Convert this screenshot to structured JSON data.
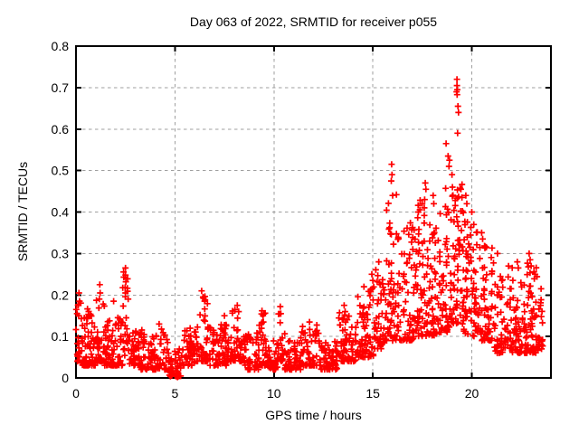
{
  "chart_data": {
    "type": "scatter",
    "title": "Day 063 of 2022, SRMTID for receiver p055",
    "xlabel": "GPS time / hours",
    "ylabel": "SRMTID / TECUs",
    "xlim": [
      0,
      24
    ],
    "ylim": [
      0,
      0.8
    ],
    "xticks": [
      0,
      5,
      10,
      15,
      20
    ],
    "xtick_labels": [
      "0",
      "5",
      "10",
      "15",
      "20"
    ],
    "yticks": [
      0,
      0.1,
      0.2,
      0.3,
      0.4,
      0.5,
      0.6,
      0.7,
      0.8
    ],
    "ytick_labels": [
      "0",
      "0.1",
      "0.2",
      "0.3",
      "0.4",
      "0.5",
      "0.6",
      "0.7",
      "0.8"
    ],
    "grid": true,
    "legend": "none",
    "marker": "plus",
    "marker_color": "#ff0000",
    "grid_color": "#9f9f9f",
    "axis_color": "#000000",
    "background_color": "#ffffff",
    "series_name": "SRMTID",
    "bins_format": [
      "t_start_hours",
      "t_end_hours",
      "count",
      "y_min_TECU",
      "y_max_TECU",
      "concentration_exponent"
    ],
    "density_bins": [
      [
        0.0,
        0.25,
        20,
        0.04,
        0.19,
        2.0
      ],
      [
        0.25,
        1.0,
        75,
        0.03,
        0.17,
        2.2
      ],
      [
        1.0,
        1.45,
        40,
        0.04,
        0.22,
        2.0
      ],
      [
        1.45,
        2.35,
        70,
        0.03,
        0.16,
        2.2
      ],
      [
        2.35,
        2.65,
        22,
        0.05,
        0.26,
        1.5
      ],
      [
        2.65,
        3.2,
        45,
        0.03,
        0.12,
        2.0
      ],
      [
        3.2,
        4.7,
        110,
        0.02,
        0.12,
        2.2
      ],
      [
        4.7,
        5.35,
        35,
        0.004,
        0.07,
        1.8
      ],
      [
        5.35,
        6.1,
        55,
        0.03,
        0.12,
        2.0
      ],
      [
        6.1,
        6.7,
        45,
        0.04,
        0.2,
        2.2
      ],
      [
        6.7,
        7.8,
        75,
        0.03,
        0.13,
        2.0
      ],
      [
        7.8,
        8.45,
        50,
        0.04,
        0.17,
        2.2
      ],
      [
        8.45,
        9.25,
        55,
        0.02,
        0.11,
        2.0
      ],
      [
        9.25,
        9.65,
        30,
        0.03,
        0.16,
        2.2
      ],
      [
        9.65,
        10.2,
        40,
        0.02,
        0.09,
        1.8
      ],
      [
        10.2,
        10.55,
        25,
        0.04,
        0.17,
        2.0
      ],
      [
        10.55,
        11.35,
        55,
        0.02,
        0.09,
        1.8
      ],
      [
        11.35,
        12.3,
        60,
        0.03,
        0.13,
        2.0
      ],
      [
        12.3,
        13.2,
        60,
        0.02,
        0.09,
        1.8
      ],
      [
        13.2,
        14.2,
        70,
        0.04,
        0.16,
        2.0
      ],
      [
        14.2,
        15.05,
        65,
        0.05,
        0.22,
        2.0
      ],
      [
        15.05,
        15.6,
        45,
        0.07,
        0.27,
        1.8
      ],
      [
        15.6,
        16.25,
        55,
        0.09,
        0.45,
        1.8
      ],
      [
        16.25,
        17.1,
        75,
        0.09,
        0.38,
        1.7
      ],
      [
        17.1,
        17.7,
        55,
        0.1,
        0.43,
        1.7
      ],
      [
        17.7,
        18.4,
        65,
        0.1,
        0.38,
        1.7
      ],
      [
        18.4,
        19.0,
        55,
        0.11,
        0.46,
        1.7
      ],
      [
        19.0,
        19.6,
        60,
        0.13,
        0.47,
        1.6
      ],
      [
        19.6,
        20.3,
        65,
        0.1,
        0.38,
        1.7
      ],
      [
        20.3,
        21.1,
        65,
        0.09,
        0.32,
        1.8
      ],
      [
        21.1,
        22.1,
        70,
        0.06,
        0.28,
        1.9
      ],
      [
        22.1,
        22.75,
        55,
        0.06,
        0.23,
        1.9
      ],
      [
        22.75,
        23.35,
        55,
        0.06,
        0.29,
        1.8
      ],
      [
        23.35,
        23.6,
        20,
        0.07,
        0.19,
        1.8
      ]
    ],
    "outliers": [
      [
        0.15,
        0.205
      ],
      [
        0.18,
        0.185
      ],
      [
        1.2,
        0.225
      ],
      [
        1.22,
        0.205
      ],
      [
        1.18,
        0.19
      ],
      [
        1.9,
        0.185
      ],
      [
        2.5,
        0.265
      ],
      [
        2.5,
        0.248
      ],
      [
        2.52,
        0.232
      ],
      [
        2.48,
        0.218
      ],
      [
        2.5,
        0.205
      ],
      [
        4.2,
        0.13
      ],
      [
        4.78,
        0.012
      ],
      [
        4.84,
        0.006
      ],
      [
        5.1,
        0.004
      ],
      [
        5.13,
        0.002
      ],
      [
        5.16,
        0.004
      ],
      [
        5.13,
        0.007
      ],
      [
        6.35,
        0.21
      ],
      [
        6.42,
        0.195
      ],
      [
        6.5,
        0.185
      ],
      [
        7.5,
        0.15
      ],
      [
        8.15,
        0.175
      ],
      [
        8.22,
        0.16
      ],
      [
        9.4,
        0.162
      ],
      [
        9.45,
        0.15
      ],
      [
        10.32,
        0.172
      ],
      [
        10.35,
        0.155
      ],
      [
        11.8,
        0.135
      ],
      [
        13.55,
        0.175
      ],
      [
        13.6,
        0.16
      ],
      [
        14.55,
        0.22
      ],
      [
        14.95,
        0.25
      ],
      [
        15.0,
        0.235
      ],
      [
        15.3,
        0.28
      ],
      [
        15.95,
        0.515
      ],
      [
        15.97,
        0.49
      ],
      [
        15.93,
        0.475
      ],
      [
        16.0,
        0.44
      ],
      [
        17.3,
        0.4
      ],
      [
        17.65,
        0.47
      ],
      [
        17.68,
        0.455
      ],
      [
        17.62,
        0.43
      ],
      [
        17.6,
        0.41
      ],
      [
        18.05,
        0.44
      ],
      [
        18.08,
        0.42
      ],
      [
        18.7,
        0.565
      ],
      [
        18.8,
        0.535
      ],
      [
        18.87,
        0.525
      ],
      [
        18.85,
        0.51
      ],
      [
        19.0,
        0.49
      ],
      [
        19.02,
        0.46
      ],
      [
        19.05,
        0.44
      ],
      [
        19.25,
        0.72
      ],
      [
        19.25,
        0.705
      ],
      [
        19.27,
        0.695
      ],
      [
        19.23,
        0.69
      ],
      [
        19.26,
        0.683
      ],
      [
        19.3,
        0.655
      ],
      [
        19.33,
        0.64
      ],
      [
        19.28,
        0.59
      ],
      [
        19.45,
        0.455
      ],
      [
        19.5,
        0.435
      ],
      [
        19.7,
        0.44
      ],
      [
        19.75,
        0.42
      ],
      [
        20.0,
        0.4
      ],
      [
        20.1,
        0.37
      ],
      [
        20.5,
        0.35
      ],
      [
        20.55,
        0.335
      ],
      [
        21.3,
        0.3
      ],
      [
        22.3,
        0.28
      ],
      [
        22.35,
        0.265
      ],
      [
        22.9,
        0.3
      ],
      [
        22.95,
        0.285
      ],
      [
        23.0,
        0.27
      ],
      [
        23.2,
        0.25
      ],
      [
        23.5,
        0.215
      ]
    ]
  }
}
